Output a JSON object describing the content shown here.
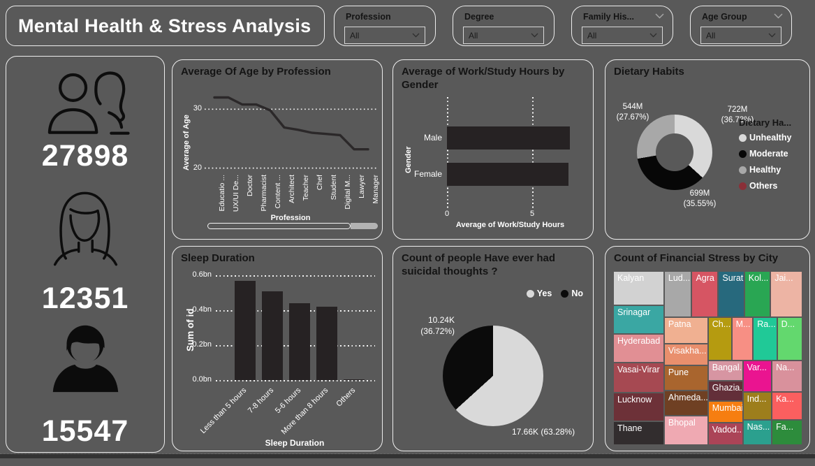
{
  "header": {
    "title": "Mental Health & Stress Analysis",
    "slicers": [
      {
        "label": "Profession",
        "value": "All",
        "corner_chevron": false
      },
      {
        "label": "Degree",
        "value": "All",
        "corner_chevron": false
      },
      {
        "label": "Family His...",
        "value": "All",
        "corner_chevron": true
      },
      {
        "label": "Age Group",
        "value": "All",
        "corner_chevron": true
      }
    ]
  },
  "kpi": {
    "total": "27898",
    "female": "12351",
    "male": "15547"
  },
  "chart_data": [
    {
      "id": "age_by_profession",
      "type": "line",
      "title": "Average Of Age by Profession",
      "xlabel": "Profession",
      "ylabel": "Average of Age",
      "categories": [
        "Educatio ...",
        "UX/UI De...",
        "Doctor",
        "Pharmacist",
        "Content ...",
        "Architect",
        "Teacher",
        "Chef",
        "Student",
        "Digital M...",
        "Lawyer",
        "Manager"
      ],
      "values": [
        32,
        32,
        30.8,
        30.8,
        29.8,
        26.9,
        26.5,
        26,
        25.8,
        25.6,
        23.2,
        23.2
      ],
      "yticks": [
        30,
        20
      ],
      "ylim": [
        19.6,
        33.6
      ],
      "grid": "dotted",
      "line_color": "#2b2829",
      "scrollbar_fraction": 0.84
    },
    {
      "id": "workstudy_by_gender",
      "type": "bar",
      "orientation": "horizontal",
      "title": "Average of Work/Study Hours by Gender",
      "xlabel": "Average of Work/Study Hours",
      "ylabel": "Gender",
      "categories": [
        "Male",
        "Female"
      ],
      "values": [
        7.2,
        7.1
      ],
      "xticks": [
        0,
        5
      ],
      "xlim": [
        0,
        7.6
      ],
      "grid": "dotted",
      "bar_color": "#262223"
    },
    {
      "id": "dietary_habits",
      "type": "pie",
      "subtype": "donut",
      "title": "Dietary Habits",
      "legend": {
        "title": "Dietary Ha...",
        "position": "right",
        "items": [
          {
            "label": "Unhealthy",
            "color": "#d9d9d9"
          },
          {
            "label": "Moderate",
            "color": "#070707"
          },
          {
            "label": "Healthy",
            "color": "#a8a8a8"
          },
          {
            "label": "Others",
            "color": "#8a3038"
          }
        ]
      },
      "slices": [
        {
          "label": "Unhealthy",
          "value_display": "722M",
          "pct_display": "(36.73%)",
          "pct": 36.73,
          "color": "#d9d9d9"
        },
        {
          "label": "Moderate",
          "value_display": "699M",
          "pct_display": "(35.55%)",
          "pct": 35.55,
          "color": "#070707"
        },
        {
          "label": "Healthy",
          "value_display": "544M",
          "pct_display": "(27.67%)",
          "pct": 27.67,
          "color": "#a8a8a8"
        },
        {
          "label": "Others",
          "value_display": "",
          "pct_display": "",
          "pct": 0.05,
          "color": "#8a3038"
        }
      ]
    },
    {
      "id": "sleep_duration",
      "type": "bar",
      "orientation": "vertical",
      "title": "Sleep Duration",
      "xlabel": "Sleep Duration",
      "ylabel": "Sum of id",
      "categories": [
        "Less than 5 hours",
        "7-8 hours",
        "5-6 hours",
        "More than 8 hours",
        "Others"
      ],
      "values": [
        0.57,
        0.51,
        0.44,
        0.42,
        0.005
      ],
      "yticks": [
        0,
        0.2,
        0.4,
        0.6
      ],
      "ytick_suffix": "bn",
      "ylim": [
        0,
        0.6
      ],
      "grid": "dotted",
      "bar_color": "#262223"
    },
    {
      "id": "suicidal_thoughts",
      "type": "pie",
      "title": "Count of people Have ever had suicidal thoughts ?",
      "legend": {
        "position": "top-right",
        "items": [
          {
            "label": "Yes",
            "color": "#d9d9d9"
          },
          {
            "label": "No",
            "color": "#0b0b0b"
          }
        ]
      },
      "slices": [
        {
          "label": "Yes",
          "value_display": "17.66K",
          "pct_display": "(63.28%)",
          "pct": 63.28,
          "color": "#d9d9d9"
        },
        {
          "label": "No",
          "value_display": "10.24K",
          "pct_display": "(36.72%)",
          "pct": 36.72,
          "color": "#0b0b0b"
        }
      ]
    },
    {
      "id": "financial_stress_by_city",
      "type": "heatmap",
      "subtype": "treemap",
      "title": "Count of Financial Stress by City",
      "cells": [
        {
          "label": "Kalyan",
          "color": "#d2d2d2",
          "x": 0,
          "y": 0,
          "w": 26.9,
          "h": 19.6
        },
        {
          "label": "Srinagar",
          "color": "#3aa7a3",
          "x": 0,
          "y": 19.6,
          "w": 26.9,
          "h": 16.5
        },
        {
          "label": "Hyderabad",
          "color": "#e18f94",
          "x": 0,
          "y": 36.1,
          "w": 26.9,
          "h": 16.5
        },
        {
          "label": "Vasai-Virar",
          "color": "#a64952",
          "x": 0,
          "y": 52.6,
          "w": 26.9,
          "h": 17.4
        },
        {
          "label": "Lucknow",
          "color": "#6d3138",
          "x": 0,
          "y": 70,
          "w": 26.9,
          "h": 16.2
        },
        {
          "label": "Thane",
          "color": "#322d2e",
          "x": 0,
          "y": 86.2,
          "w": 26.9,
          "h": 13.8
        },
        {
          "label": "Lud...",
          "color": "#a8a8a8",
          "x": 26.9,
          "y": 0,
          "w": 14.6,
          "h": 26.6
        },
        {
          "label": "Agra",
          "color": "#d65563",
          "x": 41.5,
          "y": 0,
          "w": 14,
          "h": 26.6
        },
        {
          "label": "Surat",
          "color": "#27697d",
          "x": 55.5,
          "y": 0,
          "w": 13.8,
          "h": 26.6
        },
        {
          "label": "Kol...",
          "color": "#29a653",
          "x": 69.3,
          "y": 0,
          "w": 13.8,
          "h": 26.6
        },
        {
          "label": "Jai...",
          "color": "#edb4a4",
          "x": 83.1,
          "y": 0,
          "w": 16.9,
          "h": 26.6
        },
        {
          "label": "Patna",
          "color": "#f0b091",
          "x": 26.9,
          "y": 26.6,
          "w": 23.2,
          "h": 15.2
        },
        {
          "label": "Visakha...",
          "color": "#e98f6d",
          "x": 26.9,
          "y": 41.8,
          "w": 23.2,
          "h": 12.4
        },
        {
          "label": "Pune",
          "color": "#a9652e",
          "x": 26.9,
          "y": 54.2,
          "w": 23.2,
          "h": 14.6
        },
        {
          "label": "Ahmeda...",
          "color": "#6f4023",
          "x": 26.9,
          "y": 68.8,
          "w": 23.2,
          "h": 14.2
        },
        {
          "label": "Bhopal",
          "color": "#efa9b2",
          "x": 26.9,
          "y": 83,
          "w": 23.2,
          "h": 17
        },
        {
          "label": "Ch...",
          "color": "#b59b10",
          "x": 50.1,
          "y": 26.6,
          "w": 12.5,
          "h": 24.8
        },
        {
          "label": "M...",
          "color": "#f78f84",
          "x": 62.6,
          "y": 26.6,
          "w": 11.3,
          "h": 24.8
        },
        {
          "label": "Ra...",
          "color": "#20c997",
          "x": 73.9,
          "y": 26.6,
          "w": 12.7,
          "h": 24.8
        },
        {
          "label": "D...",
          "color": "#63d86e",
          "x": 86.6,
          "y": 26.6,
          "w": 13.4,
          "h": 24.8
        },
        {
          "label": "Bangal...",
          "color": "#d795a2",
          "x": 50.1,
          "y": 51.4,
          "w": 18.4,
          "h": 11.8
        },
        {
          "label": "Ghazia...",
          "color": "#632f39",
          "x": 50.1,
          "y": 63.2,
          "w": 18.4,
          "h": 11.6
        },
        {
          "label": "Mumbai",
          "color": "#f67e11",
          "x": 50.1,
          "y": 74.8,
          "w": 18.4,
          "h": 12.4
        },
        {
          "label": "Vadod...",
          "color": "#ab4457",
          "x": 50.1,
          "y": 87.2,
          "w": 18.4,
          "h": 12.8
        },
        {
          "label": "Var...",
          "color": "#ea1490",
          "x": 68.5,
          "y": 51.4,
          "w": 15.3,
          "h": 18
        },
        {
          "label": "Na...",
          "color": "#d9919c",
          "x": 83.8,
          "y": 51.4,
          "w": 16.2,
          "h": 18
        },
        {
          "label": "Ind...",
          "color": "#9d7e1c",
          "x": 68.5,
          "y": 69.4,
          "w": 15.3,
          "h": 16
        },
        {
          "label": "Ka...",
          "color": "#fb5f5f",
          "x": 83.8,
          "y": 69.4,
          "w": 16.2,
          "h": 16
        },
        {
          "label": "Nas...",
          "color": "#2ba08e",
          "x": 68.5,
          "y": 85.4,
          "w": 15.3,
          "h": 14.6
        },
        {
          "label": "Fa...",
          "color": "#2d8c3c",
          "x": 83.8,
          "y": 85.4,
          "w": 16.2,
          "h": 14.6
        }
      ]
    }
  ]
}
